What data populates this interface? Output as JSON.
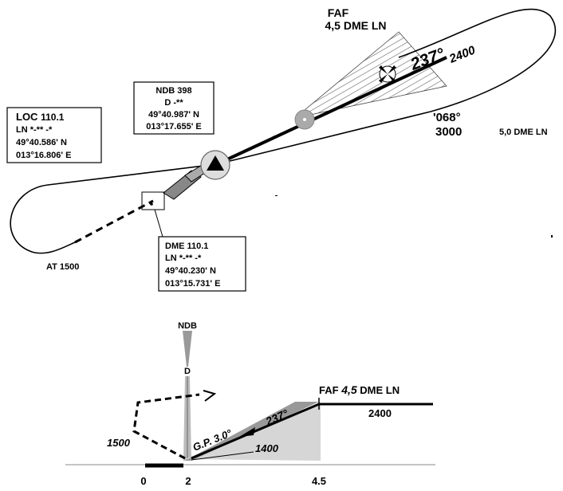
{
  "plan": {
    "faf": {
      "title": "FAF",
      "distance": "4,5 DME LN"
    },
    "inbound_course": "237°",
    "inbound_altitude": "2400",
    "outbound_course": "'068°",
    "outbound_altitude": "3000",
    "turn_limit": "5,0 DME LN",
    "holding_altitude": "AT 1500",
    "loc_box": {
      "ident_prefix": "LOC",
      "frequency": "110.1",
      "morse": "LN *-** -*",
      "lat": "49°40.586' N",
      "lon": "013°16.806' E"
    },
    "ndb_box": {
      "title": "NDB 398",
      "morse": "D -**",
      "lat": "49°40.987' N",
      "lon": "013°17.655' E"
    },
    "dme_box": {
      "title": "DME 110.1",
      "morse": "LN *-** -*",
      "lat": "49°40.230' N",
      "lon": "013°15.731' E"
    }
  },
  "profile": {
    "ndb_label": "NDB",
    "d_label": "D",
    "faf_label_prefix": "FAF",
    "faf_distance": "4,5",
    "faf_label_suffix": "DME LN",
    "altitude_2400": "2400",
    "course": "237°",
    "glide_path": "G.P. 3.0°",
    "altitude_1400": "1400",
    "altitude_1500": "1500",
    "axis": [
      "0",
      "2",
      "4.5"
    ]
  }
}
